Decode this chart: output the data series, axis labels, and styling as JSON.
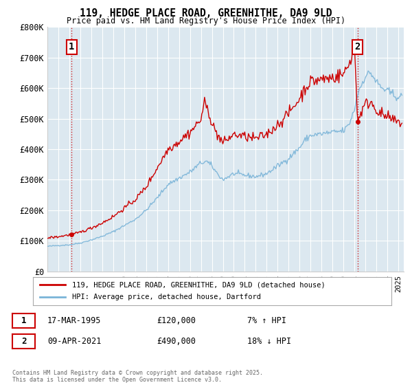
{
  "title": "119, HEDGE PLACE ROAD, GREENHITHE, DA9 9LD",
  "subtitle": "Price paid vs. HM Land Registry's House Price Index (HPI)",
  "legend_line1": "119, HEDGE PLACE ROAD, GREENHITHE, DA9 9LD (detached house)",
  "legend_line2": "HPI: Average price, detached house, Dartford",
  "annotation1_label": "1",
  "annotation1_date": "17-MAR-1995",
  "annotation1_price": "£120,000",
  "annotation1_hpi": "7% ↑ HPI",
  "annotation1_year": 1995.21,
  "annotation1_value": 120000,
  "annotation2_label": "2",
  "annotation2_date": "09-APR-2021",
  "annotation2_price": "£490,000",
  "annotation2_hpi": "18% ↓ HPI",
  "annotation2_year": 2021.29,
  "annotation2_value": 490000,
  "ylim": [
    0,
    800000
  ],
  "yticks": [
    0,
    100000,
    200000,
    300000,
    400000,
    500000,
    600000,
    700000,
    800000
  ],
  "ytick_labels": [
    "£0",
    "£100K",
    "£200K",
    "£300K",
    "£400K",
    "£500K",
    "£600K",
    "£700K",
    "£800K"
  ],
  "hpi_color": "#7ab4d8",
  "price_color": "#cc0000",
  "bg_color": "#dce8f0",
  "grid_color": "#ffffff",
  "copyright_text": "Contains HM Land Registry data © Crown copyright and database right 2025.\nThis data is licensed under the Open Government Licence v3.0.",
  "xlim_start": 1993.0,
  "xlim_end": 2025.5
}
